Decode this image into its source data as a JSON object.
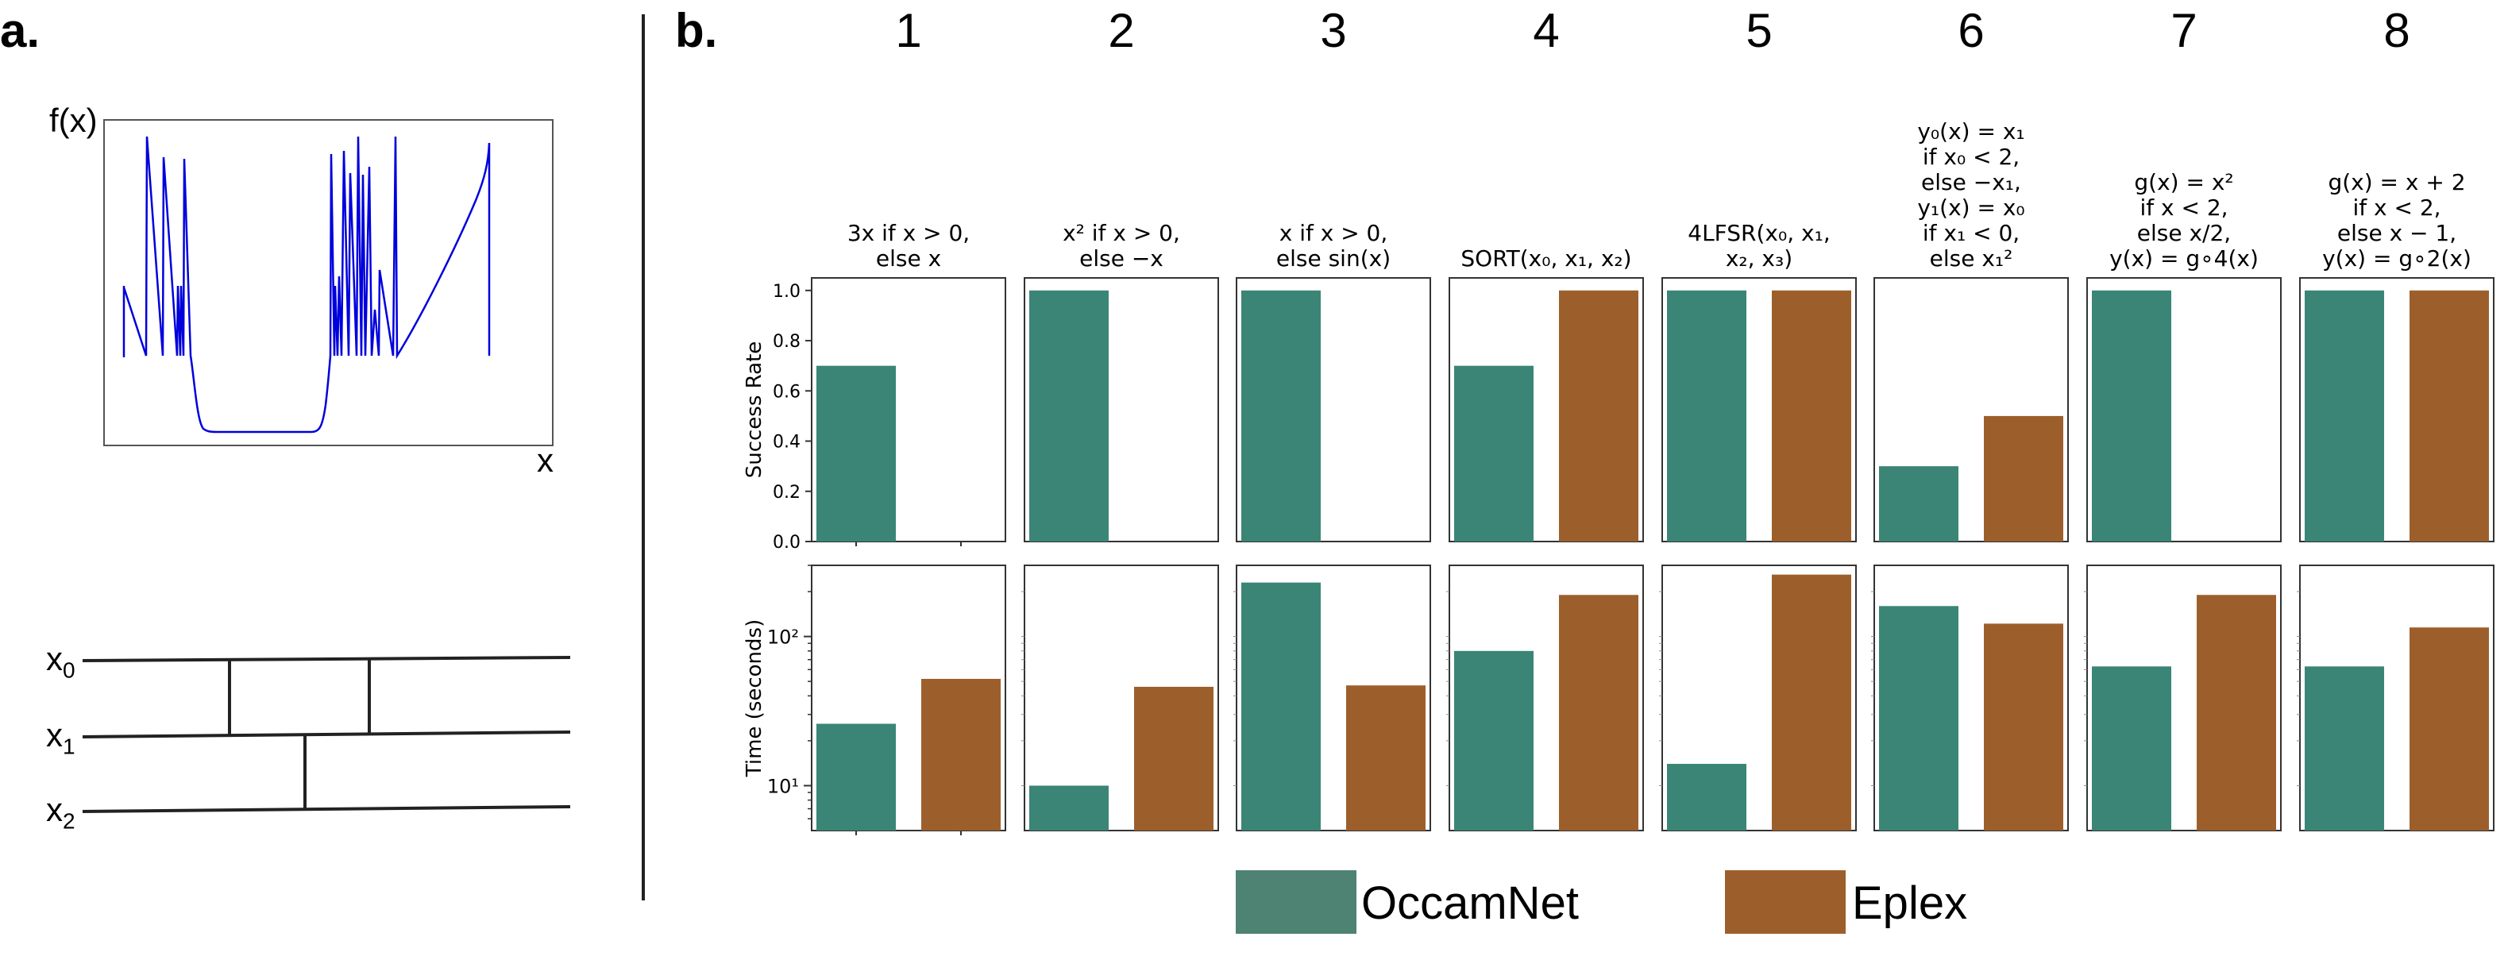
{
  "panel_a": {
    "label": "a.",
    "fx_label": "f(x)",
    "x_label": "x",
    "wires": [
      "x0",
      "x1",
      "x2"
    ]
  },
  "panel_b": {
    "label": "b."
  },
  "colors": {
    "occamnet": "#3a8576",
    "eplex": "#9c5f2c",
    "occamnet_legend": "#4e8272",
    "curve": "#0000dd"
  },
  "chart_data": {
    "type": "bar",
    "categories": [
      "OccamNet",
      "Eplex"
    ],
    "columns": [
      {
        "number": "1",
        "title": [
          "3x if x > 0,",
          "else x"
        ]
      },
      {
        "number": "2",
        "title": [
          "x² if x > 0,",
          "else −x"
        ]
      },
      {
        "number": "3",
        "title": [
          "x if x > 0,",
          "else sin(x)"
        ]
      },
      {
        "number": "4",
        "title": [
          "SORT(x₀, x₁, x₂)"
        ]
      },
      {
        "number": "5",
        "title": [
          "4LFSR(x₀, x₁,",
          "x₂, x₃)"
        ]
      },
      {
        "number": "6",
        "title": [
          "y₀(x) = x₁",
          "if x₀ < 2,",
          "else −x₁,",
          "y₁(x) = x₀",
          "if x₁ < 0,",
          "else x₁²"
        ]
      },
      {
        "number": "7",
        "title": [
          "g(x) = x²",
          "if x < 2,",
          "else x/2,",
          "y(x) = g∘4(x)"
        ]
      },
      {
        "number": "8",
        "title": [
          "g(x) = x + 2",
          "if x < 2,",
          "else x − 1,",
          "y(x) = g∘2(x)"
        ]
      }
    ],
    "success_rate": {
      "ylabel": "Success Rate",
      "ylim": [
        0,
        1.05
      ],
      "yticks": [
        "0.0",
        "0.2",
        "0.4",
        "0.6",
        "0.8",
        "1.0"
      ],
      "occamnet": [
        0.7,
        1.0,
        1.0,
        0.7,
        1.0,
        0.3,
        1.0,
        1.0
      ],
      "eplex": [
        0.0,
        0.0,
        0.0,
        1.0,
        1.0,
        0.5,
        0.0,
        1.0
      ]
    },
    "time": {
      "ylabel": "Time (seconds)",
      "scale": "log",
      "ylim": [
        5,
        300
      ],
      "yticks": [
        "10¹",
        "10²"
      ],
      "occamnet": [
        26,
        10,
        230,
        80,
        14,
        160,
        63,
        63
      ],
      "eplex": [
        52,
        46,
        47,
        190,
        260,
        122,
        190,
        115
      ]
    },
    "legend": [
      "OccamNet",
      "Eplex"
    ]
  }
}
